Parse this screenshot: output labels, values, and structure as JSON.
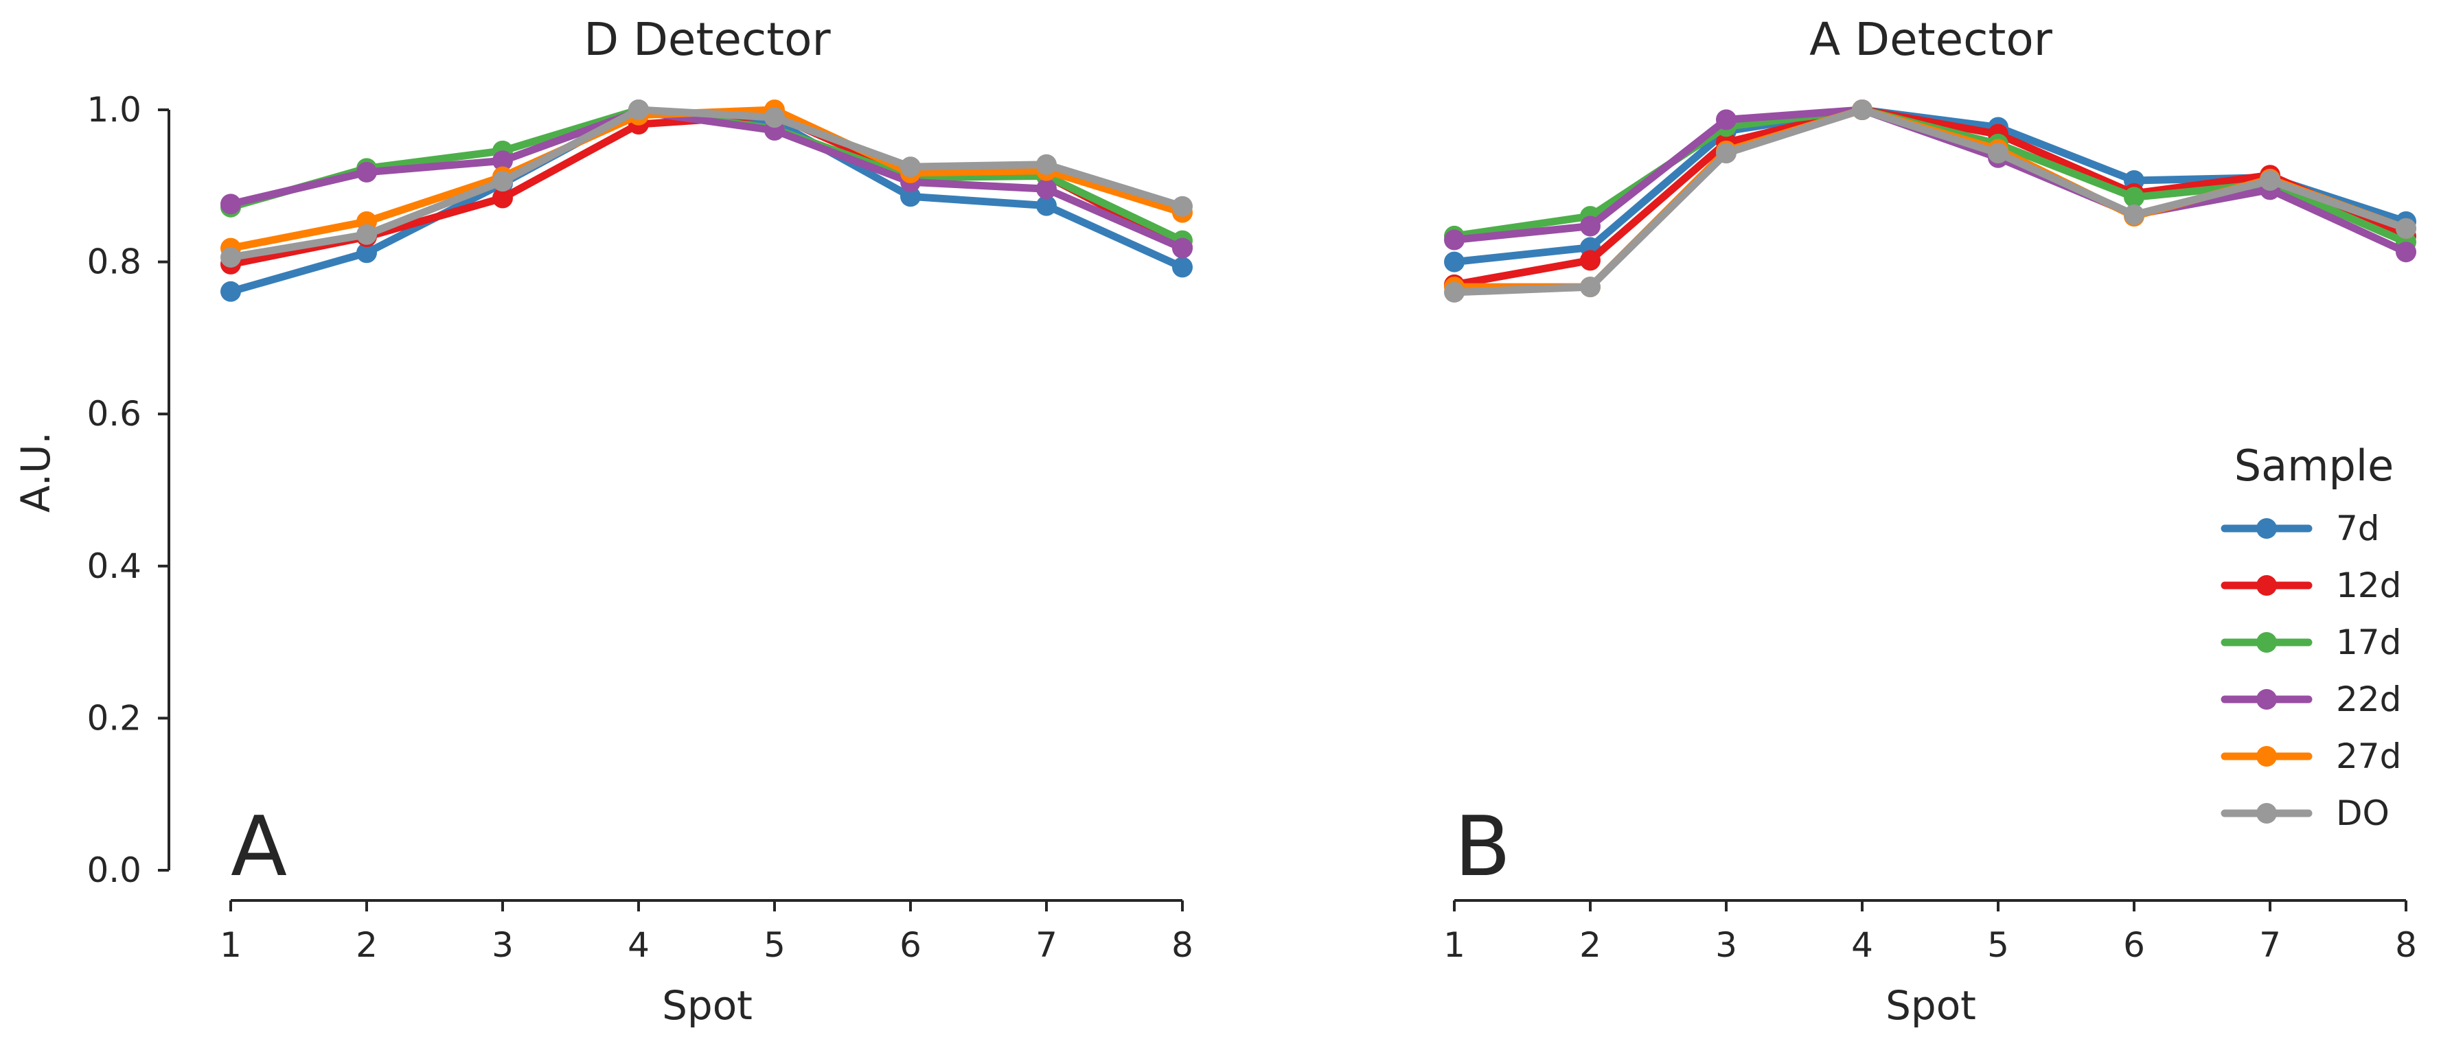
{
  "chart_data": [
    {
      "type": "line",
      "title": "D Detector",
      "panel_label": "A",
      "xlabel": "Spot",
      "ylabel": "A.U.",
      "x": [
        1,
        2,
        3,
        4,
        5,
        6,
        7,
        8
      ],
      "ylim": [
        0.0,
        1.0
      ],
      "yticks": [
        "0.0",
        "0.2",
        "0.4",
        "0.6",
        "0.8",
        "1.0"
      ],
      "series": [
        {
          "name": "7d",
          "color": "#377eb8",
          "values": [
            0.761,
            0.812,
            0.903,
            1.0,
            0.985,
            0.886,
            0.874,
            0.793
          ]
        },
        {
          "name": "12d",
          "color": "#e41a1c",
          "values": [
            0.797,
            0.833,
            0.884,
            0.981,
            0.993,
            0.913,
            0.913,
            0.819
          ]
        },
        {
          "name": "17d",
          "color": "#4daf4a",
          "values": [
            0.872,
            0.923,
            0.946,
            1.0,
            0.975,
            0.911,
            0.913,
            0.828
          ]
        },
        {
          "name": "22d",
          "color": "#984ea3",
          "values": [
            0.876,
            0.918,
            0.933,
            0.998,
            0.973,
            0.905,
            0.896,
            0.818
          ]
        },
        {
          "name": "27d",
          "color": "#ff7f00",
          "values": [
            0.818,
            0.853,
            0.912,
            0.993,
            1.0,
            0.917,
            0.92,
            0.865
          ]
        },
        {
          "name": "DO",
          "color": "#999999",
          "values": [
            0.806,
            0.836,
            0.906,
            1.0,
            0.99,
            0.925,
            0.928,
            0.873
          ]
        }
      ]
    },
    {
      "type": "line",
      "title": "A Detector",
      "panel_label": "B",
      "xlabel": "Spot",
      "ylabel": "",
      "x": [
        1,
        2,
        3,
        4,
        5,
        6,
        7,
        8
      ],
      "ylim": [
        0.0,
        1.0
      ],
      "series": [
        {
          "name": "7d",
          "color": "#377eb8",
          "values": [
            0.8,
            0.819,
            0.972,
            1.0,
            0.977,
            0.907,
            0.911,
            0.853
          ]
        },
        {
          "name": "12d",
          "color": "#e41a1c",
          "values": [
            0.77,
            0.802,
            0.957,
            1.0,
            0.968,
            0.89,
            0.914,
            0.834
          ]
        },
        {
          "name": "17d",
          "color": "#4daf4a",
          "values": [
            0.834,
            0.86,
            0.978,
            1.0,
            0.955,
            0.885,
            0.903,
            0.826
          ]
        },
        {
          "name": "22d",
          "color": "#984ea3",
          "values": [
            0.829,
            0.847,
            0.987,
            1.0,
            0.937,
            0.862,
            0.895,
            0.813
          ]
        },
        {
          "name": "27d",
          "color": "#ff7f00",
          "values": [
            0.767,
            0.767,
            0.946,
            1.0,
            0.948,
            0.86,
            0.909,
            0.844
          ]
        },
        {
          "name": "DO",
          "color": "#999999",
          "values": [
            0.76,
            0.767,
            0.943,
            1.0,
            0.943,
            0.862,
            0.907,
            0.844
          ]
        }
      ]
    }
  ],
  "legend": {
    "title": "Sample",
    "items": [
      "7d",
      "12d",
      "17d",
      "22d",
      "27d",
      "DO"
    ]
  }
}
